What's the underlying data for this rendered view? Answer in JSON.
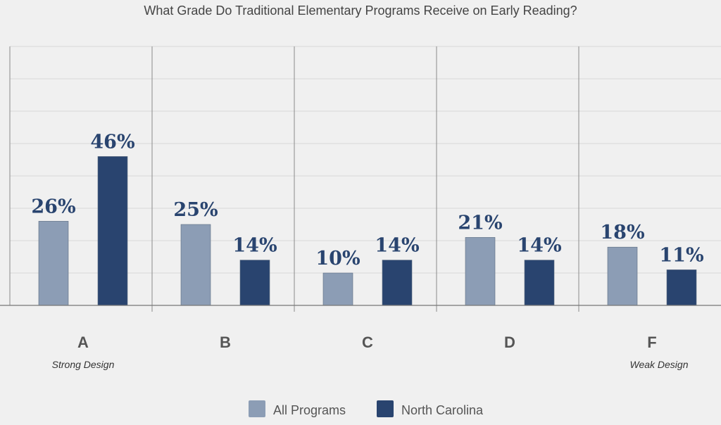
{
  "chart_data": {
    "type": "bar",
    "title": "What Grade Do Traditional Elementary Programs Receive on Early Reading?",
    "categories": [
      "A",
      "B",
      "C",
      "D",
      "F"
    ],
    "category_sublabels": [
      "Strong Design",
      "",
      "",
      "",
      "Weak Design"
    ],
    "series": [
      {
        "name": "All Programs",
        "values": [
          26,
          25,
          10,
          21,
          18
        ],
        "labels": [
          "26%",
          "25%",
          "10%",
          "21%",
          "18%"
        ],
        "color": "#8c9db5"
      },
      {
        "name": "North Carolina",
        "values": [
          46,
          14,
          14,
          14,
          11
        ],
        "labels": [
          "46%",
          "14%",
          "14%",
          "14%",
          "11%"
        ],
        "color": "#29446f"
      }
    ],
    "ylim": [
      0,
      80
    ],
    "grid": true,
    "legend": "bottom",
    "label_color": "#29446f"
  }
}
